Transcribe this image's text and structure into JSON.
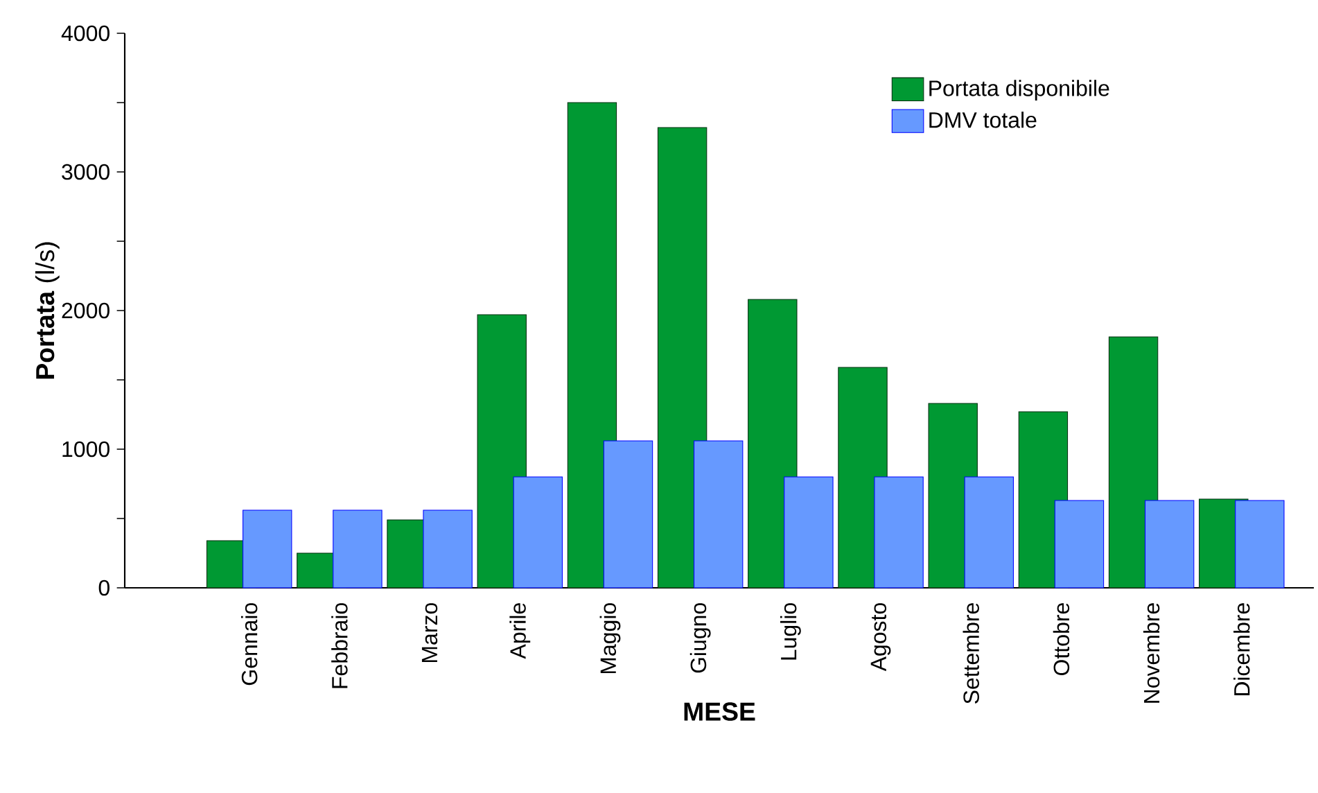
{
  "chart_data": {
    "type": "bar",
    "xlabel": "MESE",
    "ylabel": "**Portata** (l/s)",
    "categories": [
      "Gennaio",
      "Febbraio",
      "Marzo",
      "Aprile",
      "Maggio",
      "Giugno",
      "Luglio",
      "Agosto",
      "Settembre",
      "Ottobre",
      "Novembre",
      "Dicembre"
    ],
    "series": [
      {
        "name": "Portata disponibile",
        "color": "#009933",
        "values": [
          340,
          250,
          490,
          1970,
          3500,
          3320,
          2080,
          1590,
          1330,
          1270,
          1810,
          640
        ]
      },
      {
        "name": "DMV totale",
        "color": "#6699ff",
        "values": [
          560,
          560,
          560,
          800,
          1060,
          1060,
          800,
          800,
          800,
          630,
          630,
          630
        ]
      }
    ],
    "ylim": [
      0,
      4000
    ],
    "yticks": [
      0,
      {
        "value": 500,
        "label": null
      },
      1000,
      {
        "value": 1500,
        "label": null
      },
      2000,
      {
        "value": 2500,
        "label": null
      },
      3000,
      {
        "value": 3500,
        "label": null
      },
      4000
    ],
    "legend": "top right"
  }
}
